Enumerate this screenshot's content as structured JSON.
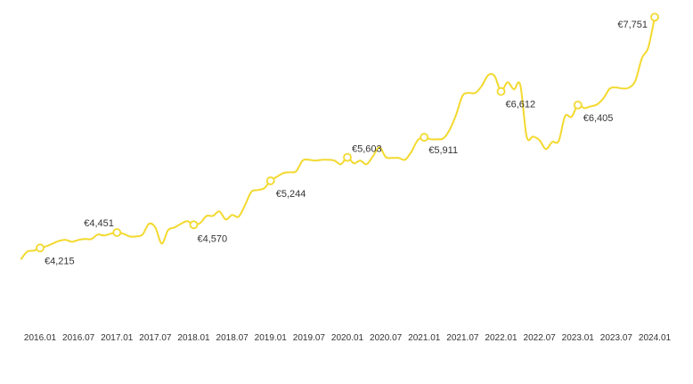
{
  "chart_data": {
    "type": "line",
    "color": "#f3d92e",
    "x": [
      "2015.10",
      "2015.11",
      "2015.12",
      "2016.01",
      "2016.02",
      "2016.03",
      "2016.04",
      "2016.05",
      "2016.06",
      "2016.07",
      "2016.08",
      "2016.09",
      "2016.10",
      "2016.11",
      "2016.12",
      "2017.01",
      "2017.02",
      "2017.03",
      "2017.04",
      "2017.05",
      "2017.06",
      "2017.07",
      "2017.08",
      "2017.09",
      "2017.10",
      "2017.11",
      "2017.12",
      "2018.01",
      "2018.02",
      "2018.03",
      "2018.04",
      "2018.05",
      "2018.06",
      "2018.07",
      "2018.08",
      "2018.09",
      "2018.10",
      "2018.11",
      "2018.12",
      "2019.01",
      "2019.02",
      "2019.03",
      "2019.04",
      "2019.05",
      "2019.06",
      "2019.07",
      "2019.08",
      "2019.09",
      "2019.10",
      "2019.11",
      "2019.12",
      "2020.01",
      "2020.02",
      "2020.03",
      "2020.04",
      "2020.05",
      "2020.06",
      "2020.07",
      "2020.08",
      "2020.09",
      "2020.10",
      "2020.11",
      "2020.12",
      "2021.01",
      "2021.02",
      "2021.03",
      "2021.04",
      "2021.05",
      "2021.06",
      "2021.07",
      "2021.08",
      "2021.09",
      "2021.10",
      "2021.11",
      "2021.12",
      "2022.01",
      "2022.02",
      "2022.03",
      "2022.04",
      "2022.05",
      "2022.06",
      "2022.07",
      "2022.08",
      "2022.09",
      "2022.10",
      "2022.11",
      "2022.12",
      "2023.01",
      "2023.02",
      "2023.03",
      "2023.04",
      "2023.05",
      "2023.06",
      "2023.07",
      "2023.08",
      "2023.09",
      "2023.10",
      "2023.11",
      "2023.12",
      "2024.01"
    ],
    "values": [
      4038,
      4160,
      4174,
      4215,
      4242,
      4283,
      4324,
      4338,
      4310,
      4338,
      4352,
      4352,
      4420,
      4406,
      4433,
      4451,
      4433,
      4392,
      4392,
      4420,
      4584,
      4529,
      4283,
      4488,
      4529,
      4584,
      4625,
      4570,
      4597,
      4706,
      4706,
      4775,
      4652,
      4720,
      4693,
      4870,
      5075,
      5102,
      5130,
      5244,
      5307,
      5362,
      5375,
      5389,
      5553,
      5566,
      5553,
      5566,
      5566,
      5553,
      5498,
      5603,
      5512,
      5553,
      5498,
      5621,
      5757,
      5607,
      5594,
      5594,
      5566,
      5689,
      5867,
      5911,
      5880,
      5880,
      5894,
      6031,
      6262,
      6549,
      6590,
      6590,
      6699,
      6863,
      6849,
      6612,
      6754,
      6645,
      6713,
      5921,
      5921,
      5867,
      5730,
      5839,
      5853,
      6235,
      6222,
      6405,
      6358,
      6385,
      6413,
      6508,
      6658,
      6672,
      6658,
      6672,
      6781,
      7122,
      7286,
      7751
    ],
    "points": [
      {
        "x": "2016.01",
        "value": 4215,
        "label": "€4,215"
      },
      {
        "x": "2017.01",
        "value": 4451,
        "label": "€4,451"
      },
      {
        "x": "2018.01",
        "value": 4570,
        "label": "€4,570"
      },
      {
        "x": "2019.01",
        "value": 5244,
        "label": "€5,244"
      },
      {
        "x": "2020.01",
        "value": 5603,
        "label": "€5,603"
      },
      {
        "x": "2021.01",
        "value": 5911,
        "label": "€5,911"
      },
      {
        "x": "2022.01",
        "value": 6612,
        "label": "€6,612"
      },
      {
        "x": "2023.01",
        "value": 6405,
        "label": "€6,405"
      },
      {
        "x": "2024.01",
        "value": 7751,
        "label": "€7,751"
      }
    ],
    "ylim": [
      3100,
      8000
    ],
    "xticks": [
      "2016.01",
      "2016.07",
      "2017.01",
      "2017.07",
      "2018.01",
      "2018.07",
      "2019.01",
      "2019.07",
      "2020.01",
      "2020.07",
      "2021.01",
      "2021.07",
      "2022.01",
      "2022.07",
      "2023.01",
      "2023.07",
      "2024.01"
    ]
  }
}
